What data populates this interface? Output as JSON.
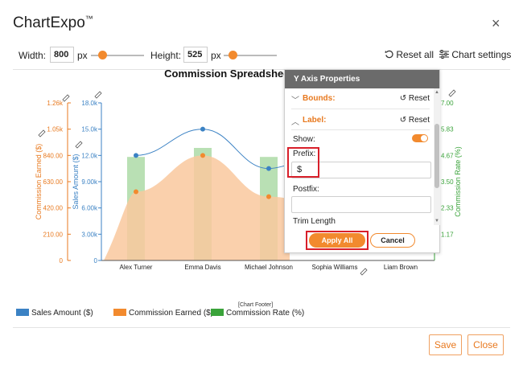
{
  "app": {
    "title": "ChartExpo",
    "trademark": "™",
    "close_glyph": "×"
  },
  "toolbar": {
    "width_label": "Width:",
    "width_value": "800",
    "width_unit": "px",
    "height_label": "Height:",
    "height_value": "525",
    "height_unit": "px",
    "reset_all": "Reset all",
    "chart_settings": "Chart settings"
  },
  "chart_data": [
    {
      "type": "bar",
      "title": "Commission Spreadsheet",
      "categories": [
        "Alex Turner",
        "Emma Davis",
        "Michael Johnson",
        "Sophia Williams",
        "Liam Brown"
      ],
      "series": [
        {
          "name": "Sales Amount ($)",
          "type": "line",
          "axis": "Sales Amount ($)",
          "values": [
            12000,
            15000,
            10500,
            null,
            null
          ],
          "color": "#3b82c4"
        },
        {
          "name": "Commission Earned ($)",
          "type": "area",
          "axis": "Commission Earned ($)",
          "values": [
            550,
            840,
            510,
            null,
            null
          ],
          "color": "#f9c89d"
        },
        {
          "name": "Commission Rate (%)",
          "type": "bar",
          "axis": "Commission Rate (%)",
          "values": [
            4.6,
            5.0,
            4.6,
            null,
            null
          ],
          "color": "#9fd49a"
        }
      ],
      "axes": {
        "left_outer": {
          "label": "Commission Earned ($)",
          "ticks": [
            "0",
            "210.00",
            "420.00",
            "630.00",
            "840.00",
            "1.05k",
            "1.26k"
          ],
          "color": "#e8791f",
          "ylim": [
            0,
            1260
          ]
        },
        "left_inner": {
          "label": "Sales Amount ($)",
          "ticks": [
            "0",
            "3.00k",
            "6.00k",
            "9.00k",
            "12.0k",
            "15.0k",
            "18.0k"
          ],
          "color": "#3b82c4",
          "ylim": [
            0,
            18000
          ]
        },
        "right": {
          "label": "Commission Rate (%)",
          "ticks": [
            "1.17",
            "2.33",
            "3.50",
            "4.67",
            "5.83",
            "7.00"
          ],
          "color": "#3aa33a",
          "ylim": [
            0,
            7
          ]
        }
      },
      "legend_position": "bottom-left",
      "legend": [
        "Sales Amount ($)",
        "Commission Earned ($)",
        "Commission Rate (%)"
      ],
      "footer_tag": "[Chart Footer]"
    }
  ],
  "panel": {
    "title": "Y Axis Properties",
    "bounds": {
      "label": "Bounds:",
      "reset": "Reset"
    },
    "label_sec": {
      "label": "Label:",
      "reset": "Reset"
    },
    "show_label": "Show:",
    "prefix_label": "Prefix:",
    "prefix_value": "$",
    "postfix_label": "Postfix:",
    "postfix_value": "",
    "trim_label": "Trim Length",
    "apply": "Apply All",
    "cancel": "Cancel"
  },
  "footer": {
    "save": "Save",
    "close": "Close"
  },
  "colors": {
    "accent": "#f28a2e",
    "highlight": "#d81f2a",
    "blue": "#3b82c4",
    "green": "#3aa33a"
  }
}
